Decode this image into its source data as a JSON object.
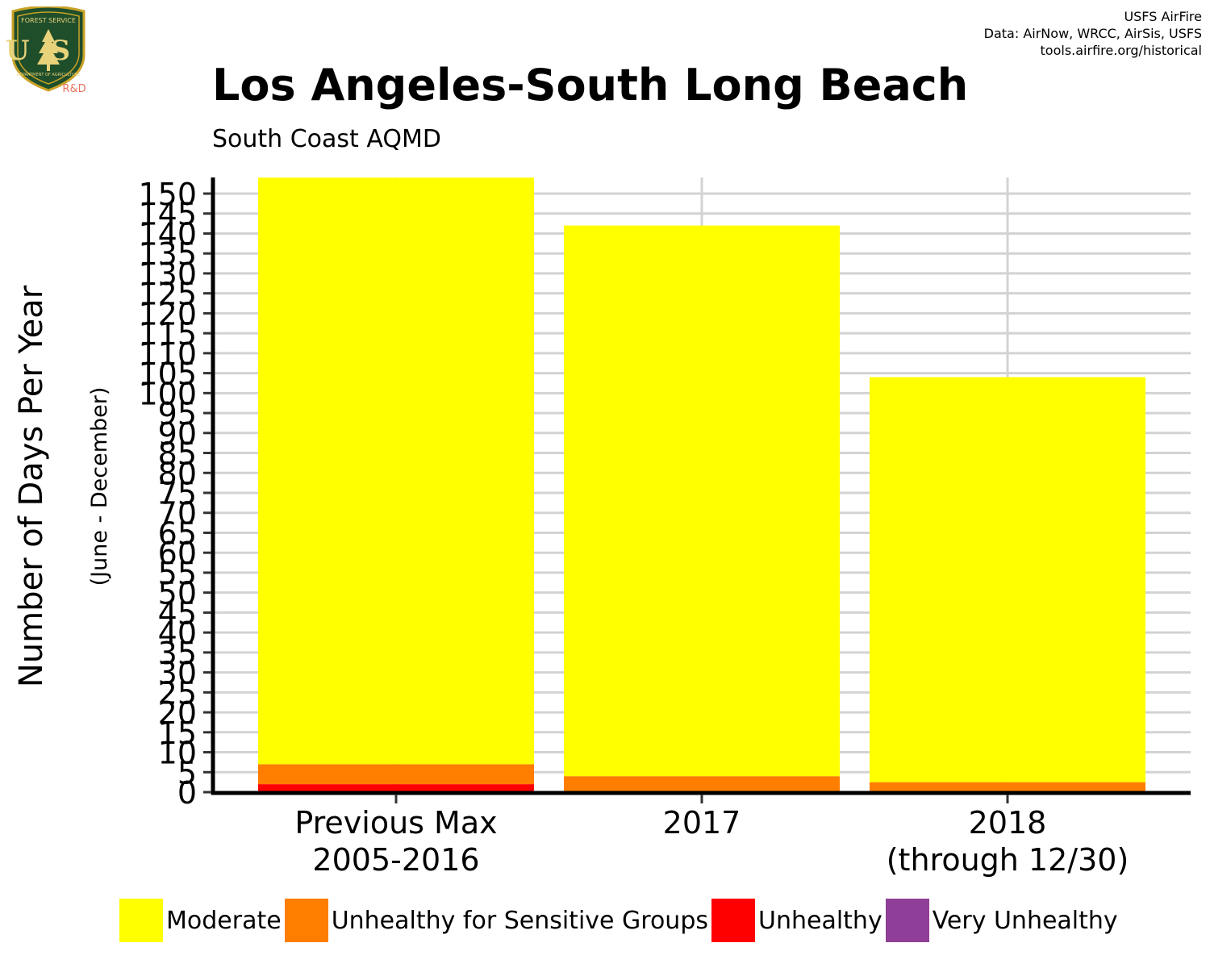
{
  "header": {
    "title": "Los Angeles-South Long Beach",
    "subtitle": "South Coast AQMD",
    "credits": [
      "USFS AirFire",
      "Data: AirNow, WRCC, AirSis, USFS",
      "tools.airfire.org/historical"
    ]
  },
  "logo": {
    "top_text": "FOREST SERVICE",
    "letters": "US",
    "bottom_text": "DEPARTMENT OF AGRICULTURE",
    "tag": "R&D"
  },
  "chart_data": {
    "type": "bar",
    "stacked": true,
    "title": "Los Angeles-South Long Beach",
    "subtitle": "South Coast AQMD",
    "ylabel": "Number of Days Per Year",
    "ylabel_sub": "(June - December)",
    "xlabel": "",
    "ylim": [
      0,
      150
    ],
    "yticks": [
      0,
      5,
      10,
      15,
      20,
      25,
      30,
      35,
      40,
      45,
      50,
      55,
      60,
      65,
      70,
      75,
      80,
      85,
      90,
      95,
      100,
      105,
      110,
      115,
      120,
      125,
      130,
      135,
      140,
      145,
      150
    ],
    "grid": true,
    "legend_position": "bottom",
    "categories": [
      [
        "Previous Max",
        "2005-2016"
      ],
      [
        "2017"
      ],
      [
        "2018",
        "(through 12/30)"
      ]
    ],
    "series": [
      {
        "name": "Unhealthy",
        "color": "#FF0000",
        "values": [
          2,
          0,
          0
        ]
      },
      {
        "name": "Unhealthy for Sensitive Groups",
        "color": "#FF7E00",
        "values": [
          5,
          4,
          2.5
        ]
      },
      {
        "name": "Moderate",
        "color": "#FFFF00",
        "values": [
          147,
          138,
          101.5
        ]
      },
      {
        "name": "Very Unhealthy",
        "color": "#8F3F97",
        "values": [
          0,
          0,
          0
        ]
      }
    ],
    "legend_order": [
      "Moderate",
      "Unhealthy for Sensitive Groups",
      "Unhealthy",
      "Very Unhealthy"
    ]
  }
}
